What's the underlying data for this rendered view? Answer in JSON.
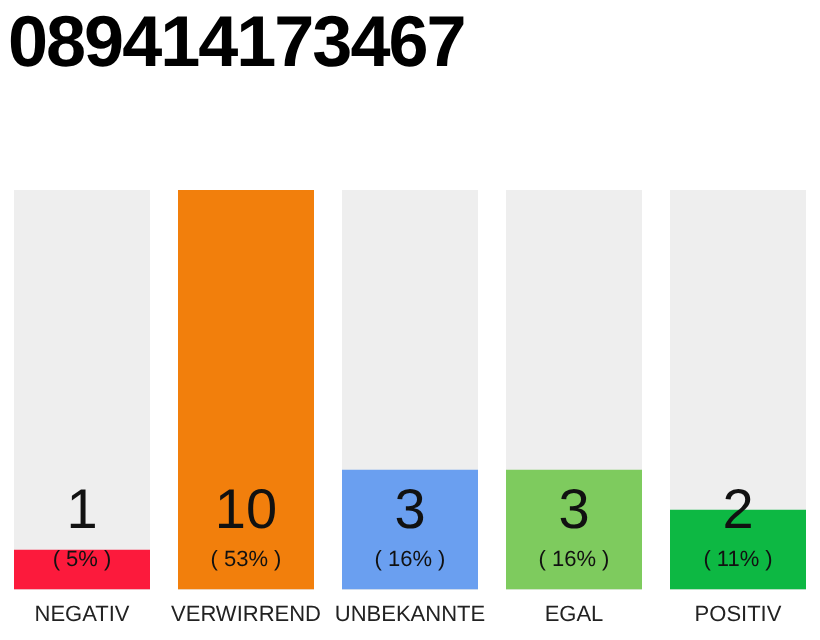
{
  "chart_data": {
    "type": "bar",
    "title": "089414173467",
    "categories": [
      "NEGATIV",
      "VERWIRREND",
      "UNBEKANNTE",
      "EGAL",
      "POSITIV"
    ],
    "values": [
      1,
      10,
      3,
      3,
      2
    ],
    "colors": [
      "#fc1a3c",
      "#f27f0c",
      "#6a9ff0",
      "#7ecb5e",
      "#0db843"
    ],
    "annotations": [
      "( 5% )",
      "( 53% )",
      "( 16% )",
      "( 16% )",
      "( 11% )"
    ],
    "data_labels": true,
    "tick_labels": "x",
    "grid": false,
    "legend": false
  }
}
